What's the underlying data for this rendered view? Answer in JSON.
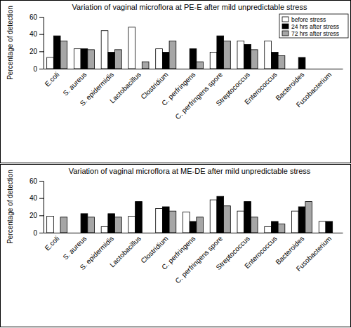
{
  "chart_data": [
    {
      "type": "bar",
      "title": "Variation of vaginal microflora at PE-E after mild unpredictable stress",
      "y_label": "Percentage of detection",
      "categories": [
        "E.coli",
        "S. aureus",
        "S. epidermidis",
        "Lactobacillus",
        "Clostridium",
        "C. perfringens",
        "C. perfringens spore",
        "Streptococcus",
        "Enterococcus",
        "Bacteroides",
        "Fusobacterium"
      ],
      "series": [
        {
          "name": "before stress",
          "color": "#ffffff",
          "values": [
            13,
            23,
            44,
            48,
            23,
            0,
            19,
            32,
            32,
            0,
            0
          ]
        },
        {
          "name": "24 hrs after stress",
          "color": "#000000",
          "values": [
            38,
            23,
            19,
            0,
            19,
            23,
            38,
            28,
            19,
            13,
            0
          ]
        },
        {
          "name": "72 hrs after stress",
          "color": "#a6a6a6",
          "values": [
            32,
            22,
            22,
            8,
            32,
            8,
            32,
            22,
            15,
            0,
            0
          ]
        }
      ],
      "ylim": [
        0,
        60
      ],
      "yticks": [
        0,
        20,
        40,
        60
      ],
      "legend": "top-right"
    },
    {
      "type": "bar",
      "title": "Variation of vaginal microflora at ME-DE after mild unpredictable stress",
      "y_label": "Percentage of detection",
      "categories": [
        "E.coli",
        "S. aureus",
        "S. epidermidis",
        "Lactobacillus",
        "Clostridium",
        "C. perfringens",
        "C. perfringens spore",
        "Streptococcus",
        "Enterococcus",
        "Bacteroides",
        "Fusobacterium"
      ],
      "series": [
        {
          "color": "#ffffff",
          "values": [
            19,
            0,
            7,
            19,
            28,
            24,
            38,
            25,
            7,
            25,
            13
          ]
        },
        {
          "color": "#000000",
          "values": [
            0,
            22,
            22,
            36,
            30,
            13,
            42,
            36,
            13,
            30,
            13
          ]
        },
        {
          "color": "#a6a6a6",
          "values": [
            18,
            18,
            18,
            0,
            25,
            18,
            31,
            18,
            10,
            36,
            0
          ]
        }
      ],
      "ylim": [
        0,
        60
      ],
      "yticks": [
        0,
        20,
        40,
        60
      ]
    }
  ]
}
